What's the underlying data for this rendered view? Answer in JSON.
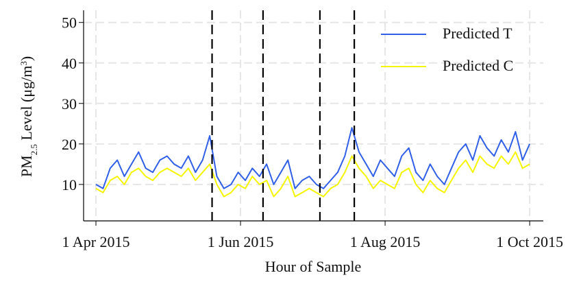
{
  "chart_data": {
    "type": "line",
    "xlabel": "Hour of Sample",
    "ylabel": [
      "PM",
      "2.5",
      " Level (μg/m",
      "3",
      ")"
    ],
    "x": [
      0,
      72,
      144,
      216,
      288,
      360,
      432,
      504,
      576,
      648,
      720,
      792,
      864,
      936,
      1008,
      1080,
      1152,
      1224,
      1296,
      1368,
      1440,
      1512,
      1584,
      1656,
      1728,
      1800,
      1872,
      1944,
      2016,
      2088,
      2160,
      2232,
      2304,
      2376,
      2448,
      2520,
      2592,
      2664,
      2736,
      2808,
      2880,
      2952,
      3024,
      3096,
      3168,
      3240,
      3312,
      3384,
      3456,
      3528,
      3600,
      3672,
      3744,
      3816,
      3888,
      3960,
      4032,
      4104,
      4176,
      4248,
      4320,
      4392
    ],
    "series": [
      {
        "name": "Predicted T",
        "color": "#2f5fe8",
        "values": [
          10,
          9,
          14,
          16,
          12,
          15,
          18,
          14,
          13,
          16,
          17,
          15,
          14,
          17,
          13,
          16,
          22,
          12,
          9,
          10,
          13,
          11,
          14,
          12,
          15,
          10,
          13,
          16,
          9,
          11,
          12,
          10,
          9,
          11,
          13,
          17,
          24,
          18,
          15,
          12,
          16,
          14,
          12,
          17,
          19,
          13,
          11,
          15,
          12,
          10,
          14,
          18,
          20,
          16,
          22,
          19,
          17,
          21,
          18,
          23,
          16,
          20
        ]
      },
      {
        "name": "Predicted C",
        "color": "#f5f500",
        "values": [
          9,
          8,
          11,
          12,
          10,
          13,
          14,
          12,
          11,
          13,
          14,
          13,
          12,
          14,
          11,
          13,
          15,
          10,
          7,
          8,
          10,
          9,
          12,
          10,
          11,
          7,
          9,
          12,
          7,
          8,
          9,
          8,
          7,
          9,
          10,
          13,
          17,
          14,
          12,
          9,
          11,
          10,
          9,
          13,
          14,
          10,
          8,
          11,
          9,
          8,
          11,
          14,
          16,
          13,
          17,
          15,
          14,
          17,
          15,
          18,
          14,
          15
        ]
      }
    ],
    "vlines": [
      1176,
      1692,
      2268,
      2616
    ],
    "xlim": [
      -125,
      4530
    ],
    "xticks": [
      {
        "value": 0,
        "label": "1 Apr 2015"
      },
      {
        "value": 1464,
        "label": "1 Jun 2015"
      },
      {
        "value": 2928,
        "label": "1 Aug 2015"
      },
      {
        "value": 4392,
        "label": "1 Oct 2015"
      }
    ],
    "ylim": [
      1,
      53
    ],
    "yticks": [
      10,
      20,
      30,
      40,
      50
    ],
    "grid": true,
    "legend": "upper right"
  }
}
